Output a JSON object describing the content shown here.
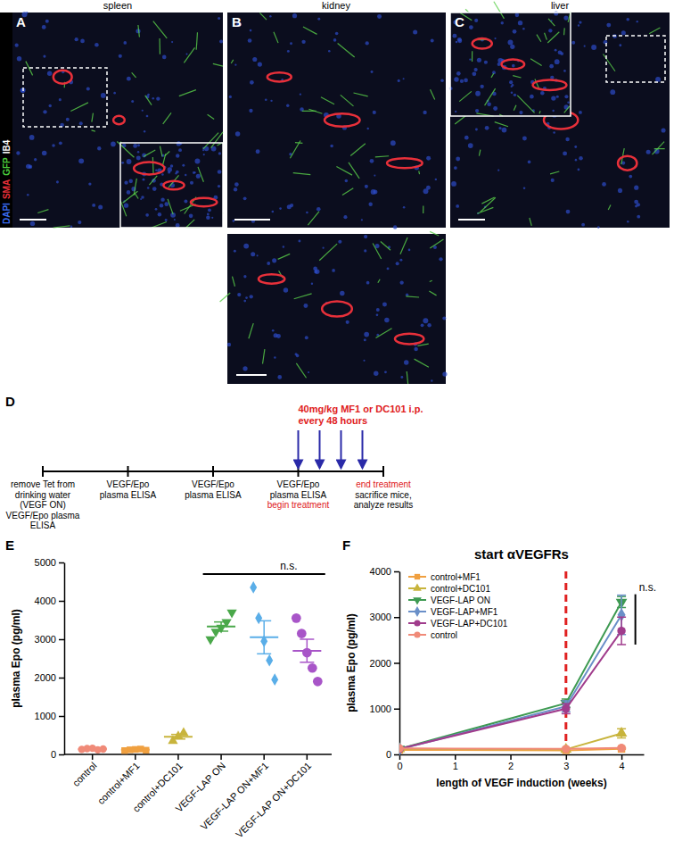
{
  "panel_letters": [
    "A",
    "B",
    "C",
    "D",
    "E",
    "F"
  ],
  "stain_legend": [
    {
      "text": "DAPI",
      "color": "#3a6cf0"
    },
    {
      "text": "SMA",
      "color": "#e8303a"
    },
    {
      "text": "GFP",
      "color": "#4ccf3c"
    },
    {
      "text": "IB4",
      "color": "#ffffff"
    }
  ],
  "image_panels": [
    {
      "title": "spleen"
    },
    {
      "title": "kidney"
    },
    {
      "title": "liver"
    }
  ],
  "timeline": {
    "treatment": {
      "lines": [
        "40mg/kg MF1 or DC101 i.p.",
        "every 48 hours"
      ],
      "color": "#e0201c"
    },
    "arrow_count": 4,
    "arrow_color": "#2a2aa8",
    "stages": [
      {
        "lines": [
          {
            "text": "remove Tet from"
          },
          {
            "text": "drinking water"
          },
          {
            "text": "(VEGF ON)"
          },
          {
            "text": "VEGF/Epo plasma"
          },
          {
            "text": "ELISA"
          }
        ]
      },
      {
        "lines": [
          {
            "text": "VEGF/Epo"
          },
          {
            "text": "plasma ELISA"
          }
        ]
      },
      {
        "lines": [
          {
            "text": "VEGF/Epo"
          },
          {
            "text": "plasma ELISA"
          }
        ]
      },
      {
        "lines": [
          {
            "text": "VEGF/Epo"
          },
          {
            "text": "plasma ELISA"
          },
          {
            "text": "begin treatment",
            "color": "#e0201c"
          }
        ]
      },
      {
        "lines": [
          {
            "text": "end treatment",
            "color": "#e0201c"
          },
          {
            "text": "sacrifice mice,"
          },
          {
            "text": "analyze results"
          }
        ]
      }
    ]
  },
  "chart_data": [
    {
      "type": "dot",
      "categories": [
        "control",
        "control+MF1",
        "control+DC101",
        "VEGF-LAP ON",
        "VEGF-LAP ON+MF1",
        "VEGF-LAP ON+DC101"
      ],
      "values": [
        [
          130,
          150,
          160,
          120,
          140
        ],
        [
          100,
          120,
          130,
          140,
          110
        ],
        [
          350,
          470,
          560
        ],
        [
          3000,
          3200,
          3300,
          3450,
          3700
        ],
        [
          4350,
          3550,
          2950,
          2450,
          1950
        ],
        [
          3550,
          3150,
          2650,
          2250,
          1900
        ]
      ],
      "mean": [
        140,
        120,
        460,
        3330,
        3050,
        2700
      ],
      "sem": [
        10,
        10,
        60,
        120,
        430,
        300
      ],
      "colors": [
        "#f08a78",
        "#f0a040",
        "#c8b43c",
        "#4aa84a",
        "#5aaee8",
        "#a855c8"
      ],
      "markers": [
        "circle",
        "square",
        "triangle",
        "triangle-down",
        "diamond",
        "circle"
      ],
      "ylabel": "plasma Epo (pg/ml)",
      "ylim": [
        0,
        5000
      ],
      "yticks": [
        0,
        1000,
        2000,
        3000,
        4000,
        5000
      ],
      "annotations": [
        {
          "type": "bracket",
          "text": "n.s.",
          "from": "VEGF-LAP ON",
          "to": "VEGF-LAP ON+DC101",
          "y": 4700
        }
      ]
    },
    {
      "type": "line",
      "title": "start αVEGFRs",
      "x": [
        0,
        3,
        4
      ],
      "xlabel": "length of VEGF induction (weeks)",
      "ylabel": "plasma Epo (pg/ml)",
      "xlim": [
        0,
        4.4
      ],
      "xticks": [
        0,
        1,
        2,
        3,
        4
      ],
      "ylim": [
        0,
        4000
      ],
      "yticks": [
        0,
        1000,
        2000,
        3000,
        4000
      ],
      "legend": "top-left",
      "series": [
        {
          "name": "control+MF1",
          "color": "#f0a040",
          "marker": "square",
          "values": [
            100,
            90,
            120
          ],
          "error": [
            10,
            10,
            10
          ]
        },
        {
          "name": "control+DC101",
          "color": "#c8b43c",
          "marker": "triangle",
          "values": [
            120,
            110,
            460
          ],
          "error": [
            15,
            15,
            100
          ]
        },
        {
          "name": "VEGF-LAP ON",
          "color": "#3e9a52",
          "marker": "triangle-down",
          "values": [
            120,
            1120,
            3330
          ],
          "error": [
            10,
            90,
            120
          ]
        },
        {
          "name": "VEGF-LAP+MF1",
          "color": "#6a8fc8",
          "marker": "diamond",
          "values": [
            110,
            1050,
            3050
          ],
          "error": [
            10,
            120,
            430
          ]
        },
        {
          "name": "VEGF-LAP+DC101",
          "color": "#a03c8c",
          "marker": "circle",
          "values": [
            120,
            1000,
            2700
          ],
          "error": [
            10,
            110,
            300
          ]
        },
        {
          "name": "control",
          "color": "#f08a78",
          "marker": "circle",
          "values": [
            130,
            120,
            140
          ],
          "error": [
            10,
            10,
            10
          ]
        }
      ],
      "annotations": [
        {
          "type": "vline",
          "x": 3,
          "color": "#e02020",
          "line_style": "dashed"
        },
        {
          "type": "bracket",
          "text": "n.s.",
          "x": 4.25,
          "y_range": [
            2400,
            3500
          ]
        }
      ]
    }
  ]
}
